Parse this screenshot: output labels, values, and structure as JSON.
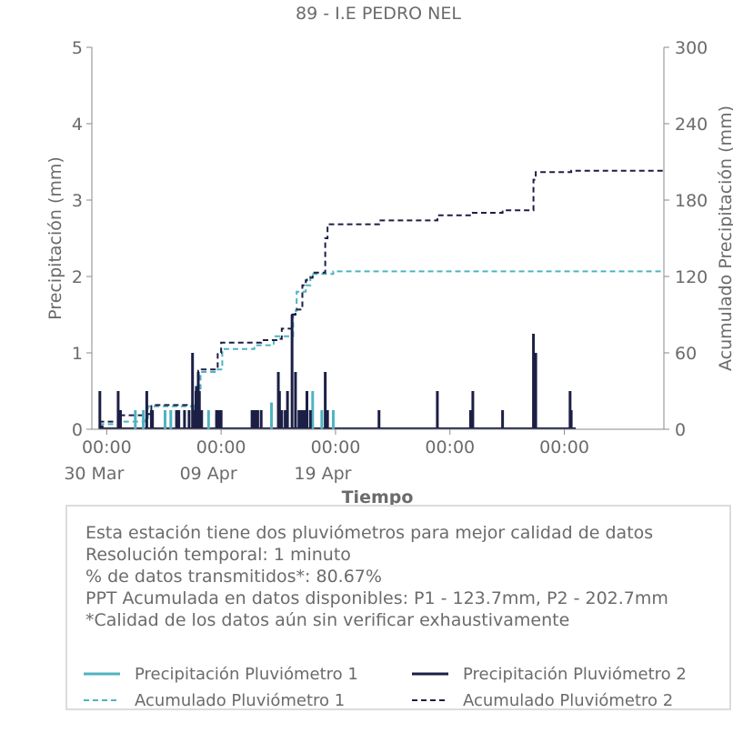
{
  "chart_data": {
    "type": "bar+line",
    "title": "89 - I.E PEDRO NEL",
    "xlabel": "Tiempo",
    "ylabel": "Precipitación (mm)",
    "y2label": "Acumulado Precipitación (mm)",
    "x_range_days": [
      -1.3,
      48.7
    ],
    "x_origin_date": "2023-03-30",
    "ylim": [
      0,
      5
    ],
    "y2lim": [
      0,
      300
    ],
    "yticks": [
      "0",
      "1",
      "2",
      "3",
      "4",
      "5"
    ],
    "y2ticks": [
      "0",
      "60",
      "120",
      "180",
      "240",
      "300"
    ],
    "xticks": [
      {
        "day": 0,
        "label": "00:00",
        "sublabel": "30 Mar"
      },
      {
        "day": 10,
        "label": "00:00",
        "sublabel": "09 Apr"
      },
      {
        "day": 20,
        "label": "00:00",
        "sublabel": "19 Apr"
      },
      {
        "day": 30,
        "label": "00:00",
        "sublabel": ""
      },
      {
        "day": 40,
        "label": "00:00",
        "sublabel": ""
      }
    ],
    "grid": false,
    "colors": {
      "p1": "#4fb3c1",
      "p2": "#1c1f45"
    },
    "series": [
      {
        "name": "Precipitación Pluviómetro 1",
        "kind": "bar",
        "axis": "left",
        "x": [
          1.2,
          2.5,
          3.2,
          5.1,
          5.6,
          6.3,
          7.6,
          8.0,
          8.9,
          9.6,
          12.9,
          14.4,
          15.7,
          17.0,
          18.0,
          18.8,
          19.8
        ],
        "values": [
          0.25,
          0.25,
          0.25,
          0.25,
          0.25,
          0.25,
          0.3,
          0.4,
          0.25,
          0.2,
          0.25,
          0.35,
          0.25,
          0.25,
          0.5,
          0.25,
          0.25
        ]
      },
      {
        "name": "Precipitación Pluviómetro 2",
        "kind": "bar",
        "axis": "left",
        "x": [
          -0.6,
          -0.4,
          1.0,
          1.2,
          3.5,
          3.9,
          4.0,
          6.1,
          6.3,
          6.8,
          7.2,
          7.5,
          7.6,
          7.8,
          8.0,
          8.1,
          8.3,
          9.6,
          9.8,
          10.0,
          12.7,
          12.9,
          13.0,
          13.2,
          13.5,
          15.0,
          15.1,
          15.2,
          15.3,
          15.6,
          15.8,
          16.2,
          16.5,
          16.8,
          17.0,
          17.2,
          17.3,
          17.5,
          17.8,
          19.1,
          19.3,
          23.8,
          28.9,
          31.8,
          32.0,
          34.6,
          37.3,
          37.5,
          40.5,
          40.6
        ],
        "values": [
          0.5,
          0.05,
          0.5,
          0.25,
          0.5,
          0.25,
          0.25,
          0.25,
          0.25,
          0.25,
          0.25,
          1.0,
          0.25,
          0.5,
          0.75,
          0.5,
          0.25,
          0.25,
          0.25,
          0.25,
          0.25,
          0.25,
          0.25,
          0.25,
          0.25,
          0.75,
          0.5,
          0.25,
          0.25,
          0.25,
          0.5,
          1.5,
          0.75,
          0.25,
          0.25,
          0.25,
          0.25,
          0.5,
          0.25,
          0.75,
          0.25,
          0.25,
          0.5,
          0.25,
          0.5,
          0.25,
          1.25,
          1.0,
          0.5,
          0.25
        ]
      },
      {
        "name": "Acumulado Pluviómetro 1",
        "kind": "step-dashed",
        "axis": "right",
        "x": [
          -0.7,
          1.2,
          3.3,
          3.6,
          7.6,
          7.9,
          8.2,
          9.6,
          10.1,
          12.9,
          14.6,
          16.3,
          16.6,
          17.4,
          17.8,
          19.8,
          25.0,
          48.7
        ],
        "values": [
          4,
          6,
          8,
          18,
          20,
          30,
          45,
          47,
          63,
          66,
          73,
          93,
          108,
          113,
          122,
          124,
          124,
          124
        ]
      },
      {
        "name": "Acumulado Pluviómetro 2",
        "kind": "step-dashed",
        "axis": "right",
        "x": [
          -0.7,
          1.0,
          1.2,
          3.5,
          3.9,
          7.5,
          7.8,
          8.0,
          8.3,
          9.7,
          10.0,
          12.7,
          13.5,
          15.2,
          15.3,
          16.2,
          16.5,
          17.1,
          17.4,
          17.5,
          18.0,
          19.1,
          19.3,
          23.8,
          28.9,
          31.8,
          32.0,
          34.6,
          37.3,
          37.5,
          40.5,
          40.6,
          48.7
        ],
        "values": [
          6,
          7,
          11,
          12,
          19,
          22,
          36,
          46,
          47,
          60,
          68,
          68,
          70,
          71,
          79,
          90,
          94,
          113,
          117,
          119,
          123,
          150,
          161,
          164,
          168,
          168,
          170,
          172,
          196,
          202,
          202,
          203,
          203
        ]
      }
    ]
  },
  "info": {
    "lines": [
      "Esta estación tiene dos pluviómetros para mejor calidad de datos",
      "Resolución temporal: 1 minuto",
      "% de datos transmitidos*: 80.67%",
      "PPT Acumulada en datos disponibles: P1 - 123.7mm, P2 - 202.7mm",
      "*Calidad de los datos aún sin verificar exhaustivamente"
    ]
  },
  "legend": {
    "items": [
      {
        "label": "Precipitación Pluviómetro 1",
        "color": "#4fb3c1",
        "style": "solid"
      },
      {
        "label": "Precipitación Pluviómetro 2",
        "color": "#1c1f45",
        "style": "solid"
      },
      {
        "label": "Acumulado Pluviómetro 1",
        "color": "#4fb3c1",
        "style": "dashed"
      },
      {
        "label": "Acumulado Pluviómetro 2",
        "color": "#1c1f45",
        "style": "dashed"
      }
    ]
  }
}
